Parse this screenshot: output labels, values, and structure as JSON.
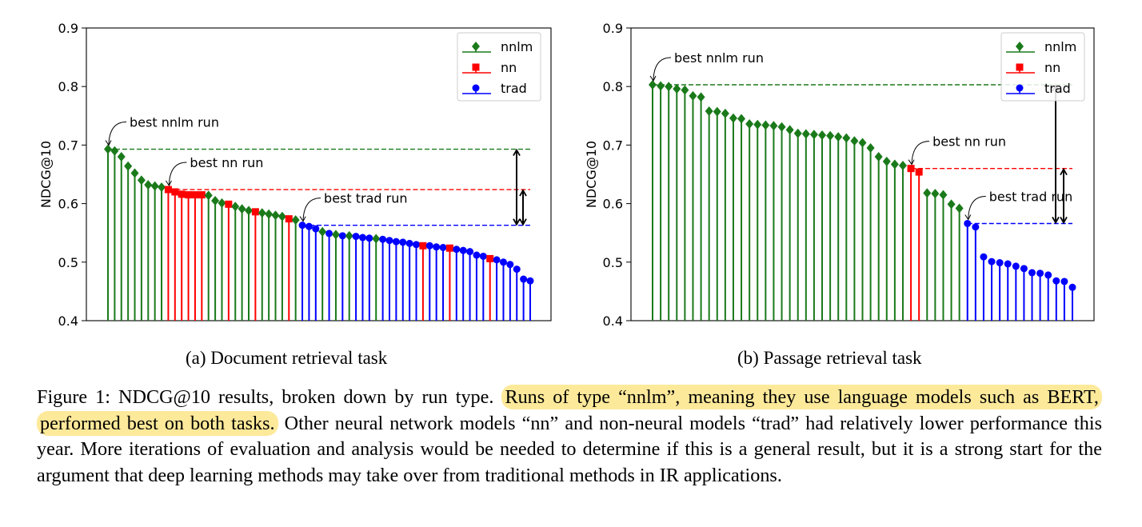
{
  "chart_data": [
    {
      "type": "stem",
      "ylabel": "NDCG@10",
      "ylim": [
        0.4,
        0.9
      ],
      "yticks": [
        "0.4",
        "0.5",
        "0.6",
        "0.7",
        "0.8",
        "0.9"
      ],
      "legend_position": "top-right",
      "legend": [
        {
          "name": "nnlm",
          "color": "#1a7a1a",
          "marker": "diamond"
        },
        {
          "name": "nn",
          "color": "#ff0000",
          "marker": "square"
        },
        {
          "name": "trad",
          "color": "#0000ff",
          "marker": "circle"
        }
      ],
      "runs": [
        {
          "type": "nnlm",
          "value": 0.693
        },
        {
          "type": "nnlm",
          "value": 0.69
        },
        {
          "type": "nnlm",
          "value": 0.68
        },
        {
          "type": "nnlm",
          "value": 0.664
        },
        {
          "type": "nnlm",
          "value": 0.652
        },
        {
          "type": "nnlm",
          "value": 0.64
        },
        {
          "type": "nnlm",
          "value": 0.632
        },
        {
          "type": "nnlm",
          "value": 0.63
        },
        {
          "type": "nnlm",
          "value": 0.628
        },
        {
          "type": "nn",
          "value": 0.624
        },
        {
          "type": "nn",
          "value": 0.62
        },
        {
          "type": "nn",
          "value": 0.616
        },
        {
          "type": "nn",
          "value": 0.615
        },
        {
          "type": "nn",
          "value": 0.615
        },
        {
          "type": "nn",
          "value": 0.615
        },
        {
          "type": "nnlm",
          "value": 0.614
        },
        {
          "type": "nnlm",
          "value": 0.605
        },
        {
          "type": "nnlm",
          "value": 0.601
        },
        {
          "type": "nn",
          "value": 0.599
        },
        {
          "type": "nnlm",
          "value": 0.595
        },
        {
          "type": "nnlm",
          "value": 0.591
        },
        {
          "type": "nnlm",
          "value": 0.588
        },
        {
          "type": "nn",
          "value": 0.586
        },
        {
          "type": "nnlm",
          "value": 0.584
        },
        {
          "type": "nnlm",
          "value": 0.582
        },
        {
          "type": "nnlm",
          "value": 0.58
        },
        {
          "type": "nnlm",
          "value": 0.578
        },
        {
          "type": "nn",
          "value": 0.574
        },
        {
          "type": "nnlm",
          "value": 0.572
        },
        {
          "type": "trad",
          "value": 0.563
        },
        {
          "type": "trad",
          "value": 0.561
        },
        {
          "type": "trad",
          "value": 0.557
        },
        {
          "type": "nnlm",
          "value": 0.552
        },
        {
          "type": "trad",
          "value": 0.549
        },
        {
          "type": "nnlm",
          "value": 0.547
        },
        {
          "type": "trad",
          "value": 0.545
        },
        {
          "type": "nnlm",
          "value": 0.545
        },
        {
          "type": "trad",
          "value": 0.544
        },
        {
          "type": "trad",
          "value": 0.542
        },
        {
          "type": "trad",
          "value": 0.541
        },
        {
          "type": "nnlm",
          "value": 0.54
        },
        {
          "type": "trad",
          "value": 0.539
        },
        {
          "type": "trad",
          "value": 0.537
        },
        {
          "type": "trad",
          "value": 0.535
        },
        {
          "type": "trad",
          "value": 0.534
        },
        {
          "type": "trad",
          "value": 0.532
        },
        {
          "type": "trad",
          "value": 0.53
        },
        {
          "type": "nn",
          "value": 0.528
        },
        {
          "type": "trad",
          "value": 0.528
        },
        {
          "type": "trad",
          "value": 0.526
        },
        {
          "type": "trad",
          "value": 0.525
        },
        {
          "type": "nn",
          "value": 0.524
        },
        {
          "type": "trad",
          "value": 0.522
        },
        {
          "type": "trad",
          "value": 0.52
        },
        {
          "type": "trad",
          "value": 0.518
        },
        {
          "type": "trad",
          "value": 0.512
        },
        {
          "type": "trad",
          "value": 0.51
        },
        {
          "type": "nn",
          "value": 0.506
        },
        {
          "type": "trad",
          "value": 0.504
        },
        {
          "type": "trad",
          "value": 0.5
        },
        {
          "type": "trad",
          "value": 0.496
        },
        {
          "type": "trad",
          "value": 0.488
        },
        {
          "type": "trad",
          "value": 0.471
        },
        {
          "type": "trad",
          "value": 0.468
        }
      ],
      "best_lines": [
        {
          "type": "nnlm",
          "value": 0.693
        },
        {
          "type": "nn",
          "value": 0.624
        },
        {
          "type": "trad",
          "value": 0.563
        }
      ],
      "annotations": [
        {
          "text": "best nnlm run",
          "type": "nnlm"
        },
        {
          "text": "best nn run",
          "type": "nn"
        },
        {
          "text": "best trad run",
          "type": "trad"
        }
      ],
      "gap_arrows": [
        {
          "from": 0.563,
          "to": 0.693
        },
        {
          "from": 0.563,
          "to": 0.624
        }
      ]
    },
    {
      "type": "stem",
      "ylabel": "NDCG@10",
      "ylim": [
        0.4,
        0.9
      ],
      "yticks": [
        "0.4",
        "0.5",
        "0.6",
        "0.7",
        "0.8",
        "0.9"
      ],
      "legend_position": "top-right",
      "legend": [
        {
          "name": "nnlm",
          "color": "#1a7a1a",
          "marker": "diamond"
        },
        {
          "name": "nn",
          "color": "#ff0000",
          "marker": "square"
        },
        {
          "name": "trad",
          "color": "#0000ff",
          "marker": "circle"
        }
      ],
      "runs": [
        {
          "type": "nnlm",
          "value": 0.803
        },
        {
          "type": "nnlm",
          "value": 0.801
        },
        {
          "type": "nnlm",
          "value": 0.8
        },
        {
          "type": "nnlm",
          "value": 0.796
        },
        {
          "type": "nnlm",
          "value": 0.794
        },
        {
          "type": "nnlm",
          "value": 0.784
        },
        {
          "type": "nnlm",
          "value": 0.782
        },
        {
          "type": "nnlm",
          "value": 0.758
        },
        {
          "type": "nnlm",
          "value": 0.757
        },
        {
          "type": "nnlm",
          "value": 0.754
        },
        {
          "type": "nnlm",
          "value": 0.746
        },
        {
          "type": "nnlm",
          "value": 0.745
        },
        {
          "type": "nnlm",
          "value": 0.736
        },
        {
          "type": "nnlm",
          "value": 0.735
        },
        {
          "type": "nnlm",
          "value": 0.734
        },
        {
          "type": "nnlm",
          "value": 0.733
        },
        {
          "type": "nnlm",
          "value": 0.731
        },
        {
          "type": "nnlm",
          "value": 0.726
        },
        {
          "type": "nnlm",
          "value": 0.72
        },
        {
          "type": "nnlm",
          "value": 0.719
        },
        {
          "type": "nnlm",
          "value": 0.718
        },
        {
          "type": "nnlm",
          "value": 0.717
        },
        {
          "type": "nnlm",
          "value": 0.716
        },
        {
          "type": "nnlm",
          "value": 0.714
        },
        {
          "type": "nnlm",
          "value": 0.712
        },
        {
          "type": "nnlm",
          "value": 0.707
        },
        {
          "type": "nnlm",
          "value": 0.704
        },
        {
          "type": "nnlm",
          "value": 0.695
        },
        {
          "type": "nnlm",
          "value": 0.68
        },
        {
          "type": "nnlm",
          "value": 0.672
        },
        {
          "type": "nnlm",
          "value": 0.667
        },
        {
          "type": "nnlm",
          "value": 0.665
        },
        {
          "type": "nn",
          "value": 0.66
        },
        {
          "type": "nn",
          "value": 0.654
        },
        {
          "type": "nnlm",
          "value": 0.618
        },
        {
          "type": "nnlm",
          "value": 0.617
        },
        {
          "type": "nnlm",
          "value": 0.615
        },
        {
          "type": "nnlm",
          "value": 0.599
        },
        {
          "type": "nnlm",
          "value": 0.592
        },
        {
          "type": "trad",
          "value": 0.566
        },
        {
          "type": "trad",
          "value": 0.56
        },
        {
          "type": "trad",
          "value": 0.509
        },
        {
          "type": "trad",
          "value": 0.501
        },
        {
          "type": "trad",
          "value": 0.499
        },
        {
          "type": "trad",
          "value": 0.497
        },
        {
          "type": "trad",
          "value": 0.493
        },
        {
          "type": "trad",
          "value": 0.489
        },
        {
          "type": "trad",
          "value": 0.482
        },
        {
          "type": "trad",
          "value": 0.481
        },
        {
          "type": "trad",
          "value": 0.478
        },
        {
          "type": "trad",
          "value": 0.468
        },
        {
          "type": "trad",
          "value": 0.467
        },
        {
          "type": "trad",
          "value": 0.457
        }
      ],
      "best_lines": [
        {
          "type": "nnlm",
          "value": 0.803
        },
        {
          "type": "nn",
          "value": 0.66
        },
        {
          "type": "trad",
          "value": 0.566
        }
      ],
      "annotations": [
        {
          "text": "best nnlm run",
          "type": "nnlm"
        },
        {
          "text": "best nn run",
          "type": "nn"
        },
        {
          "text": "best trad run",
          "type": "trad"
        }
      ],
      "gap_arrows": [
        {
          "from": 0.566,
          "to": 0.803
        },
        {
          "from": 0.566,
          "to": 0.66
        }
      ]
    }
  ],
  "subcaptions": {
    "a": "(a) Document retrieval task",
    "b": "(b) Passage retrieval task"
  },
  "caption": {
    "lead": "Figure 1: NDCG@10 results, broken down by run type. ",
    "highlight": "Runs of type “nnlm”, meaning they use language models such as BERT, performed best on both tasks.",
    "rest": " Other neural network models “nn” and non-neural models “trad” had relatively lower performance this year. More iterations of evaluation and analysis would be needed to determine if this is a general result, but it is a strong start for the argument that deep learning methods may take over from traditional methods in IR applications.",
    "highlight_color": "#fde99a"
  }
}
